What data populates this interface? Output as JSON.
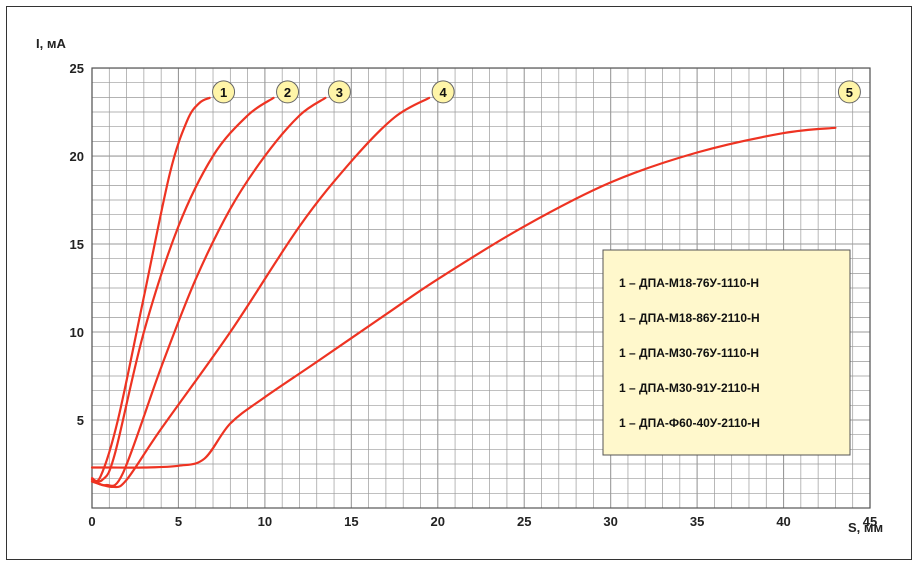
{
  "chart_data": {
    "type": "line",
    "xlabel": "S, мм",
    "ylabel": "I, мА",
    "xlim": [
      0,
      45
    ],
    "ylim": [
      0,
      25
    ],
    "x_ticks": [
      0,
      5,
      10,
      15,
      20,
      25,
      30,
      35,
      40,
      45
    ],
    "y_ticks": [
      5,
      10,
      15,
      20,
      25
    ],
    "grid": true,
    "grid_minor_step_x": 1,
    "grid_minor_step_y": 0.8333,
    "legend_position": "right",
    "colors": {
      "line": "#ee3322",
      "grid": "#9a9a9a",
      "plot_bg": "#ffffff",
      "legend_bg": "#fff8cc",
      "badge_bg": "#fff5a8"
    },
    "series": [
      {
        "label": "1",
        "x": [
          0,
          0.5,
          1.5,
          3,
          4.5,
          5.5,
          6.2,
          6.8
        ],
        "y": [
          1.7,
          1.8,
          5,
          12,
          19,
          22,
          23,
          23.3
        ]
      },
      {
        "label": "2",
        "x": [
          0,
          0.6,
          1.3,
          3,
          5,
          7,
          9,
          10.5
        ],
        "y": [
          1.6,
          1.6,
          3,
          10,
          16,
          20,
          22.3,
          23.3
        ]
      },
      {
        "label": "3",
        "x": [
          0,
          0.8,
          1.8,
          4,
          6,
          8,
          10,
          12,
          13.5
        ],
        "y": [
          1.6,
          1.3,
          2,
          8,
          13,
          17,
          20,
          22.3,
          23.3
        ]
      },
      {
        "label": "4",
        "x": [
          0,
          1.2,
          2,
          4,
          8,
          12,
          15,
          17.5,
          19.5
        ],
        "y": [
          1.5,
          1.2,
          1.6,
          4.5,
          10,
          16,
          19.7,
          22.2,
          23.3
        ]
      },
      {
        "label": "5",
        "x": [
          0,
          1,
          3,
          5,
          6.5,
          8,
          10,
          13,
          17,
          20,
          25,
          30,
          35,
          40,
          43
        ],
        "y": [
          2.3,
          2.3,
          2.3,
          2.4,
          2.8,
          4.8,
          6.3,
          8.3,
          11,
          13,
          16,
          18.5,
          20.2,
          21.3,
          21.6
        ]
      }
    ],
    "legend": [
      "1 – ДПА-М18-76У-1110-Н",
      "1 – ДПА-М18-86У-2110-Н",
      "1 – ДПА-М30-76У-1110-Н",
      "1 – ДПА-М30-91У-2110-Н",
      "1 – ДПА-Ф60-40У-2110-Н"
    ]
  }
}
